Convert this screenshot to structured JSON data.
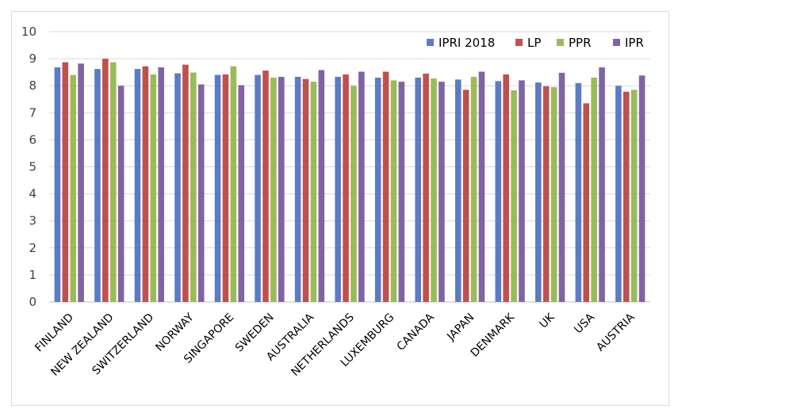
{
  "chart_data": {
    "type": "bar",
    "title": "",
    "xlabel": "",
    "ylabel": "",
    "ylim": [
      0,
      10
    ],
    "yticks": [
      0,
      1,
      2,
      3,
      4,
      5,
      6,
      7,
      8,
      9,
      10
    ],
    "grid": true,
    "legend_position": "top-right",
    "categories": [
      "FINLAND",
      "NEW ZEALAND",
      "SWITZERLAND",
      "NORWAY",
      "SINGAPORE",
      "SWEDEN",
      "AUSTRALIA",
      "NETHERLANDS",
      "LUXEMBURG",
      "CANADA",
      "JAPAN",
      "DENMARK",
      "UK",
      "USA",
      "AUSTRIA"
    ],
    "series": [
      {
        "name": "IPRI 2018",
        "color": "#5b7cc4",
        "values": [
          8.68,
          8.62,
          8.62,
          8.46,
          8.4,
          8.4,
          8.33,
          8.33,
          8.3,
          8.3,
          8.23,
          8.17,
          8.12,
          8.1,
          8.0
        ]
      },
      {
        "name": "LP",
        "color": "#c0504d",
        "values": [
          8.87,
          9.0,
          8.72,
          8.78,
          8.42,
          8.56,
          8.25,
          8.42,
          8.52,
          8.45,
          7.85,
          8.42,
          7.98,
          7.35,
          7.78
        ]
      },
      {
        "name": "PPR",
        "color": "#9bbb59",
        "values": [
          8.4,
          8.87,
          8.42,
          8.49,
          8.72,
          8.3,
          8.15,
          8.0,
          8.2,
          8.27,
          8.33,
          7.83,
          7.95,
          8.3,
          7.85
        ]
      },
      {
        "name": "IPR",
        "color": "#8064a2",
        "values": [
          8.82,
          8.0,
          8.68,
          8.05,
          8.02,
          8.33,
          8.58,
          8.52,
          8.15,
          8.15,
          8.52,
          8.2,
          8.48,
          8.68,
          8.38
        ]
      }
    ]
  }
}
